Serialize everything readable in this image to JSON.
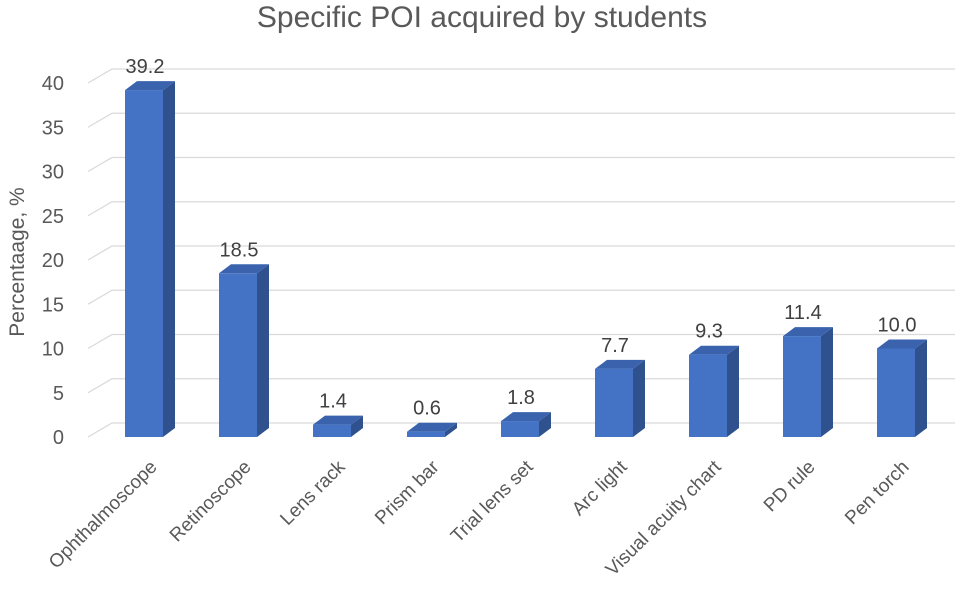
{
  "chart_data": {
    "type": "bar",
    "title": "Specific POI acquired by students",
    "ylabel": "Percentaage, %",
    "xlabel": "",
    "categories": [
      "Ophthalmoscope",
      "Retinoscope",
      "Lens rack",
      "Prism bar",
      "Trial lens set",
      "Arc light",
      "Visual acuity chart",
      "PD rule",
      "Pen torch"
    ],
    "values": [
      39.2,
      18.5,
      1.4,
      0.6,
      1.8,
      7.7,
      9.3,
      11.4,
      10.0
    ],
    "data_labels": [
      "39.2",
      "18.5",
      "1.4",
      "0.6",
      "1.8",
      "7.7",
      "9.3",
      "11.4",
      "10.0"
    ],
    "ylim": [
      0,
      40
    ],
    "yticks": [
      "0",
      "5",
      "10",
      "15",
      "20",
      "25",
      "30",
      "35",
      "40"
    ],
    "grid": true,
    "legend": "none",
    "style": "3d-column",
    "colors": {
      "bar_front": "#4472c4",
      "bar_side": "#2f528f",
      "bar_top": "#3a62ad",
      "grid": "#d9d9d9",
      "text": "#595959"
    }
  }
}
